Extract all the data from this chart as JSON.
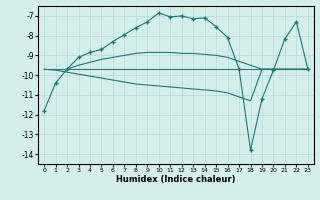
{
  "xlabel": "Humidex (Indice chaleur)",
  "xlim": [
    -0.5,
    23.5
  ],
  "ylim": [
    -14.5,
    -6.5
  ],
  "yticks": [
    -14,
    -13,
    -12,
    -11,
    -10,
    -9,
    -8,
    -7
  ],
  "xticks": [
    0,
    1,
    2,
    3,
    4,
    5,
    6,
    7,
    8,
    9,
    10,
    11,
    12,
    13,
    14,
    15,
    16,
    17,
    18,
    19,
    20,
    21,
    22,
    23
  ],
  "bg_color": "#d4eeee",
  "line_color": "#1a7a6e",
  "grid_color": "#b8d8d8",
  "line1_x": [
    0,
    1,
    2,
    3,
    4,
    5,
    6,
    7,
    8,
    9,
    10,
    11,
    12,
    13,
    14,
    15,
    16,
    17,
    18,
    19,
    20,
    21,
    22,
    23
  ],
  "line1_y": [
    -11.8,
    -10.4,
    -9.7,
    -9.1,
    -8.85,
    -8.7,
    -8.3,
    -7.95,
    -7.6,
    -7.3,
    -6.85,
    -7.05,
    -7.0,
    -7.15,
    -7.1,
    -7.55,
    -8.1,
    -9.7,
    -13.8,
    -11.2,
    -9.75,
    -8.15,
    -7.3,
    -9.7
  ],
  "line2_x": [
    0,
    1,
    2,
    3,
    4,
    5,
    6,
    7,
    8,
    9,
    10,
    11,
    12,
    13,
    14,
    15,
    16,
    17,
    18,
    19,
    20,
    21,
    22,
    23
  ],
  "line2_y": [
    -9.7,
    -9.7,
    -9.7,
    -9.7,
    -9.7,
    -9.7,
    -9.7,
    -9.7,
    -9.7,
    -9.7,
    -9.7,
    -9.7,
    -9.7,
    -9.7,
    -9.7,
    -9.7,
    -9.7,
    -9.7,
    -9.7,
    -9.7,
    -9.7,
    -9.7,
    -9.7,
    -9.7
  ],
  "line3_x": [
    2,
    3,
    4,
    5,
    6,
    7,
    8,
    9,
    10,
    11,
    12,
    13,
    14,
    15,
    16,
    17,
    18,
    19,
    20,
    21,
    22,
    23
  ],
  "line3_y": [
    -9.7,
    -9.5,
    -9.35,
    -9.2,
    -9.1,
    -9.0,
    -8.9,
    -8.85,
    -8.85,
    -8.85,
    -8.9,
    -8.9,
    -8.95,
    -9.0,
    -9.1,
    -9.3,
    -9.5,
    -9.7,
    -9.7,
    -9.7,
    -9.7,
    -9.7
  ],
  "line4_x": [
    0,
    1,
    2,
    3,
    4,
    5,
    6,
    7,
    8,
    9,
    10,
    11,
    12,
    13,
    14,
    15,
    16,
    17,
    18,
    19,
    20,
    21,
    22,
    23
  ],
  "line4_y": [
    -9.7,
    -9.75,
    -9.85,
    -9.95,
    -10.05,
    -10.15,
    -10.25,
    -10.35,
    -10.45,
    -10.5,
    -10.55,
    -10.6,
    -10.65,
    -10.7,
    -10.75,
    -10.8,
    -10.9,
    -11.1,
    -11.3,
    -9.7,
    -9.7,
    -9.7,
    -9.7,
    -9.7
  ]
}
